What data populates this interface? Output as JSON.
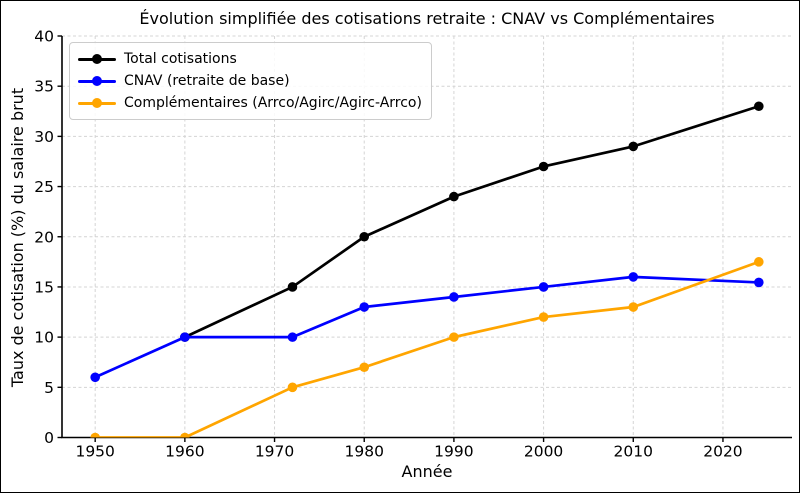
{
  "figure": {
    "background": "#ffffff",
    "border_color": "#000000"
  },
  "chart_data": {
    "type": "line",
    "title": "Évolution simplifiée des cotisations retraite : CNAV vs Complémentaires",
    "xlabel": "Année",
    "ylabel": "Taux de cotisation (%) du salaire brut",
    "xlim": [
      1946.3,
      2027.7
    ],
    "ylim": [
      0,
      40
    ],
    "xticks": [
      1950,
      1960,
      1970,
      1980,
      1990,
      2000,
      2010,
      2020
    ],
    "yticks": [
      0,
      5,
      10,
      15,
      20,
      25,
      30,
      35,
      40
    ],
    "grid": true,
    "grid_color": "#d4d4d4",
    "axis_color": "#000000",
    "legend_position": "upper left",
    "series": [
      {
        "name": "Total cotisations",
        "color": "#000000",
        "x": [
          1960,
          1972,
          1980,
          1990,
          2000,
          2010,
          2024
        ],
        "y": [
          10,
          15,
          20,
          24,
          27,
          29,
          33
        ]
      },
      {
        "name": "CNAV (retraite de base)",
        "color": "#0000ff",
        "x": [
          1950,
          1960,
          1972,
          1980,
          1990,
          2000,
          2010,
          2024
        ],
        "y": [
          6,
          10,
          10,
          13,
          14,
          15,
          16,
          15.45
        ]
      },
      {
        "name": "Complémentaires (Arrco/Agirc/Agirc-Arrco)",
        "color": "#ffa500",
        "x": [
          1950,
          1960,
          1972,
          1980,
          1990,
          2000,
          2010,
          2024
        ],
        "y": [
          0,
          0,
          5,
          7,
          10,
          12,
          13,
          17.5
        ]
      }
    ]
  }
}
